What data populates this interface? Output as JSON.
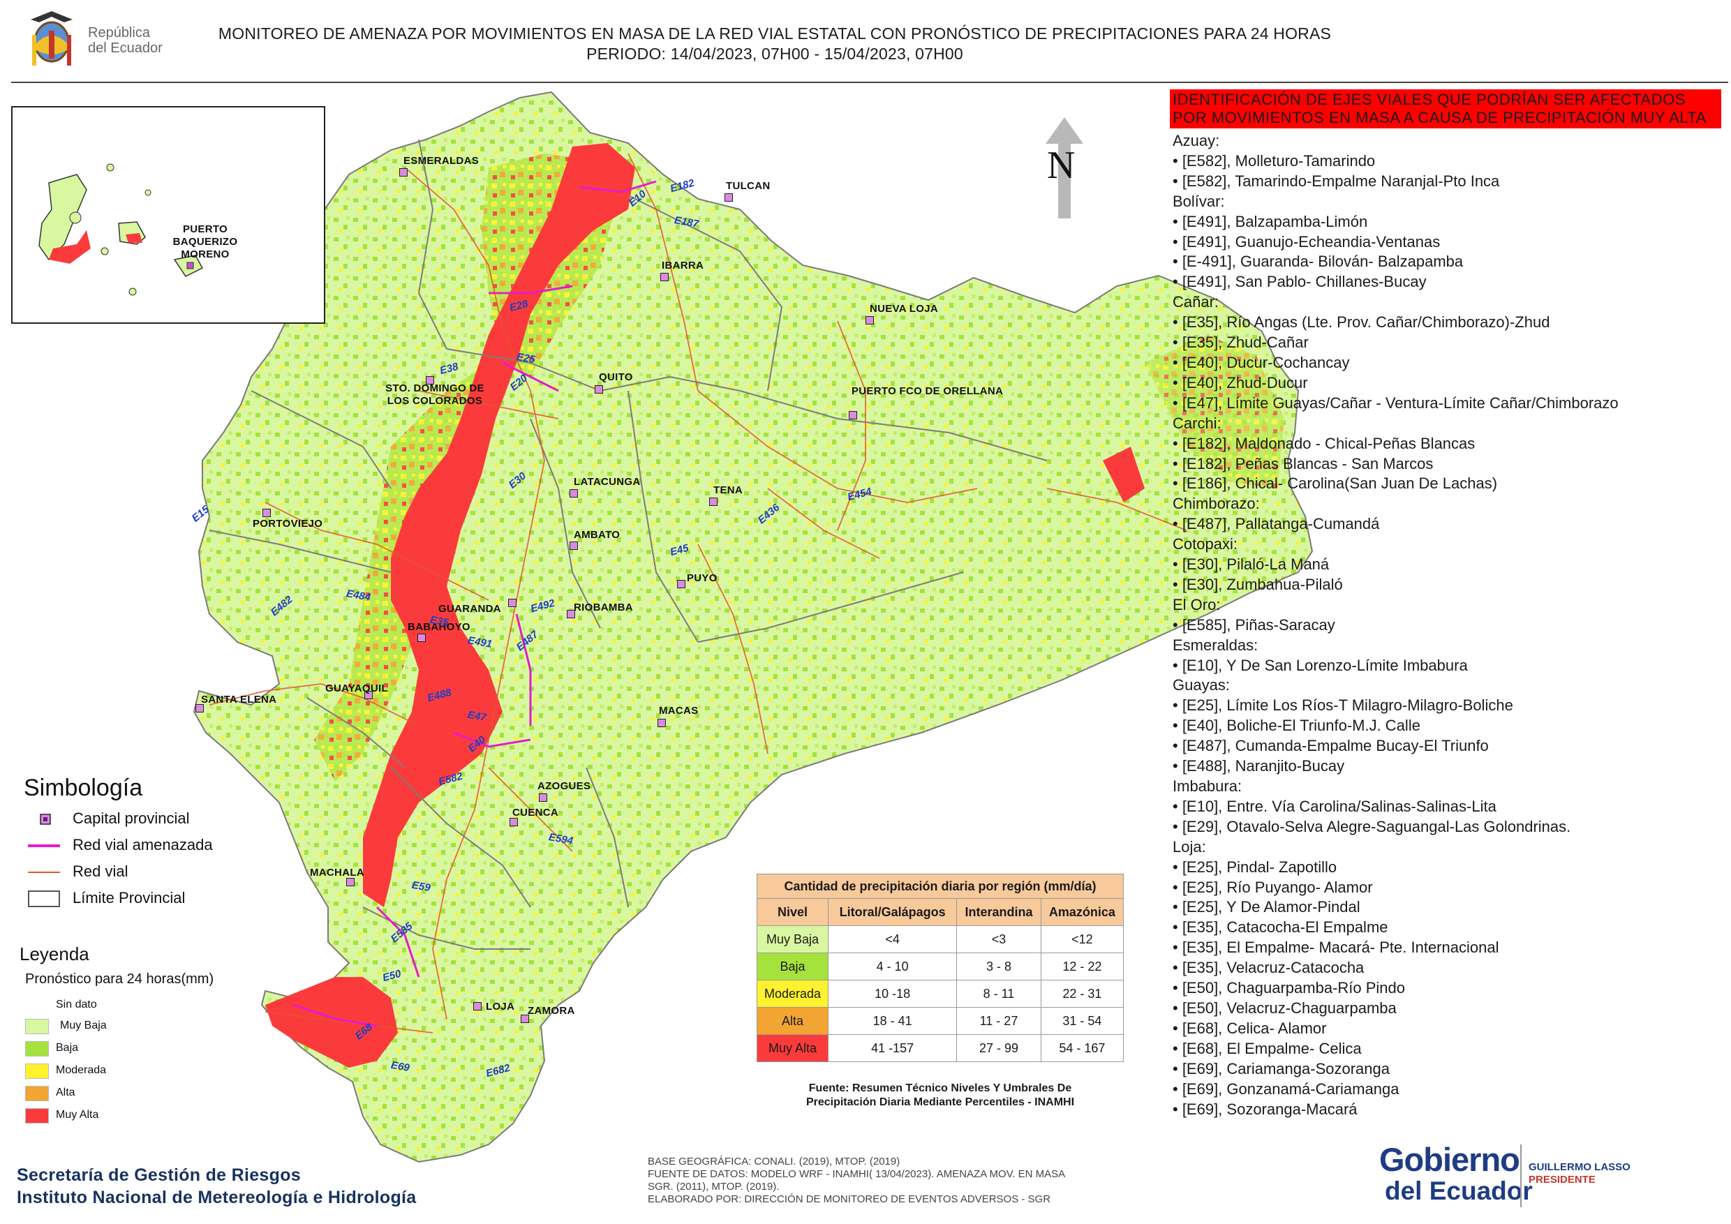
{
  "header": {
    "title_line1": "MONITOREO DE AMENAZA POR MOVIMIENTOS EN MASA DE LA RED VIAL  ESTATAL  CON PRONÓSTICO  DE  PRECIPITACIONES PARA 24 HORAS",
    "title_line2": "PERIODO: 14/04/2023, 07H00 - 15/04/2023, 07H00",
    "logo_text_1": "República",
    "logo_text_2": "del Ecuador"
  },
  "colors": {
    "muy_baja": "#d9f7a0",
    "baja": "#a6e23c",
    "moderada": "#fff22e",
    "alta": "#f2a532",
    "muy_alta": "#fb3b3b",
    "road_threatened": "#e51bcc",
    "road": "#e4552a",
    "province_border": "#707070"
  },
  "map": {
    "north_label": "N",
    "inset_label": "PUERTO BAQUERIZO MORENO",
    "cities": [
      {
        "name": "ESMERALDAS"
      },
      {
        "name": "TULCAN"
      },
      {
        "name": "IBARRA"
      },
      {
        "name": "NUEVA LOJA"
      },
      {
        "name": "QUITO"
      },
      {
        "name": "STO. DOMINGO DE LOS COLORADOS"
      },
      {
        "name": "PUERTO FCO DE ORELLANA"
      },
      {
        "name": "LATACUNGA"
      },
      {
        "name": "TENA"
      },
      {
        "name": "PORTOVIEJO"
      },
      {
        "name": "AMBATO"
      },
      {
        "name": "PUYO"
      },
      {
        "name": "GUARANDA"
      },
      {
        "name": "RIOBAMBA"
      },
      {
        "name": "BABAHOYO"
      },
      {
        "name": "SANTA ELENA"
      },
      {
        "name": "GUAYAQUIL"
      },
      {
        "name": "MACAS"
      },
      {
        "name": "AZOGUES"
      },
      {
        "name": "CUENCA"
      },
      {
        "name": "MACHALA"
      },
      {
        "name": "LOJA"
      },
      {
        "name": "ZAMORA"
      }
    ],
    "roads": [
      "E10",
      "E182",
      "E187",
      "E15",
      "E28",
      "E35",
      "E20",
      "E38",
      "E25",
      "E30",
      "E45",
      "E484",
      "E482",
      "E492",
      "E491",
      "E487",
      "E488",
      "E47",
      "E40",
      "E582",
      "E59",
      "E585",
      "E50",
      "E69",
      "E68",
      "E682",
      "E594",
      "E436",
      "E454"
    ]
  },
  "panel": {
    "heading": "IDENTIFICACIÓN DE EJES VIALES QUE PODRÍAN SER AFECTADOS POR MOVIMIENTOS EN MASA A CAUSA DE PRECIPITACIÓN MUY ALTA",
    "lines": [
      {
        "t": "prov",
        "text": "Azuay:"
      },
      {
        "t": "item",
        "text": "• [E582], Molleturo-Tamarindo"
      },
      {
        "t": "item",
        "text": "• [E582], Tamarindo-Empalme Naranjal-Pto Inca"
      },
      {
        "t": "prov",
        "text": "Bolívar:"
      },
      {
        "t": "item",
        "text": "• [E491], Balzapamba-Limón"
      },
      {
        "t": "item",
        "text": "• [E491], Guanujo-Echeandia-Ventanas"
      },
      {
        "t": "item",
        "text": "• [E-491], Guaranda- Bilován- Balzapamba"
      },
      {
        "t": "item",
        "text": "• [E491], San Pablo- Chillanes-Bucay"
      },
      {
        "t": "prov",
        "text": "Cañar:"
      },
      {
        "t": "item",
        "text": "• [E35], Río Angas (Lte. Prov. Cañar/Chimborazo)-Zhud"
      },
      {
        "t": "item",
        "text": "• [E35], Zhud-Cañar"
      },
      {
        "t": "item",
        "text": "• [E40], Ducur-Cochancay"
      },
      {
        "t": "item",
        "text": "• [E40], Zhud-Ducur"
      },
      {
        "t": "item",
        "text": "• [E47], Límite Guayas/Cañar - Ventura-Límite Cañar/Chimborazo"
      },
      {
        "t": "prov",
        "text": "Carchi:"
      },
      {
        "t": "item",
        "text": "• [E182], Maldonado - Chical-Peñas Blancas"
      },
      {
        "t": "item",
        "text": "• [E182], Peñas Blancas - San Marcos"
      },
      {
        "t": "item",
        "text": "• [E186], Chical- Carolina(San Juan De Lachas)"
      },
      {
        "t": "prov",
        "text": "Chimborazo:"
      },
      {
        "t": "item",
        "text": "• [E487], Pallatanga-Cumandá"
      },
      {
        "t": "prov",
        "text": "Cotopaxi:"
      },
      {
        "t": "item",
        "text": "• [E30], Pilaló-La Maná"
      },
      {
        "t": "item",
        "text": "• [E30], Zumbahua-Pilaló"
      },
      {
        "t": "prov",
        "text": "El Oro:"
      },
      {
        "t": "item",
        "text": "• [E585], Piñas-Saracay"
      },
      {
        "t": "prov",
        "text": "Esmeraldas:"
      },
      {
        "t": "item",
        "text": "• [E10], Y De San Lorenzo-Límite Imbabura"
      },
      {
        "t": "prov",
        "text": "Guayas:"
      },
      {
        "t": "item",
        "text": "• [E25], Límite Los Ríos-T Milagro-Milagro-Boliche"
      },
      {
        "t": "item",
        "text": "• [E40], Boliche-El Triunfo-M.J. Calle"
      },
      {
        "t": "item",
        "text": "• [E487], Cumanda-Empalme Bucay-El Triunfo"
      },
      {
        "t": "item",
        "text": "• [E488], Naranjito-Bucay"
      },
      {
        "t": "prov",
        "text": "Imbabura:"
      },
      {
        "t": "item",
        "text": "• [E10], Entre. Vía Carolina/Salinas-Salinas-Lita"
      },
      {
        "t": "item",
        "text": "• [E29], Otavalo-Selva Alegre-Saguangal-Las Golondrinas."
      },
      {
        "t": "prov",
        "text": "Loja:"
      },
      {
        "t": "item",
        "text": "• [E25], Pindal- Zapotillo"
      },
      {
        "t": "item",
        "text": "• [E25], Río Puyango- Alamor"
      },
      {
        "t": "item",
        "text": "• [E25], Y De Alamor-Pindal"
      },
      {
        "t": "item",
        "text": "• [E35], Catacocha-El Empalme"
      },
      {
        "t": "item",
        "text": "• [E35], El Empalme- Macará- Pte. Internacional"
      },
      {
        "t": "item",
        "text": "• [E35], Velacruz-Catacocha"
      },
      {
        "t": "item",
        "text": "• [E50], Chaguarpamba-Río Pindo"
      },
      {
        "t": "item",
        "text": "• [E50], Velacruz-Chaguarpamba"
      },
      {
        "t": "item",
        "text": "• [E68], Celica- Alamor"
      },
      {
        "t": "item",
        "text": "• [E68], El Empalme- Celica"
      },
      {
        "t": "item",
        "text": "• [E69], Cariamanga-Sozoranga"
      },
      {
        "t": "item",
        "text": "• [E69], Gonzanamá-Cariamanga"
      },
      {
        "t": "item",
        "text": "• [E69], Sozoranga-Macará"
      }
    ]
  },
  "simbologia": {
    "title": "Simbología",
    "items": [
      "Capital provincial",
      "Red vial amenazada",
      "Red vial",
      "Límite Provincial"
    ]
  },
  "leyenda": {
    "title": "Leyenda",
    "subtitle": "Pronóstico para 24 horas(mm)",
    "items": [
      "Sin dato",
      "Muy Baja",
      "Baja",
      "Moderada",
      "Alta",
      "Muy Alta"
    ]
  },
  "table": {
    "caption": "Cantidad de precipitación diaria por región (mm/día)",
    "headers": [
      "Nivel",
      "Litoral/Galápagos",
      "Interandina",
      "Amazónica"
    ],
    "rows": [
      [
        "Muy Baja",
        "<4",
        "<3",
        "<12"
      ],
      [
        "Baja",
        "4 - 10",
        "3 - 8",
        "12 - 22"
      ],
      [
        "Moderada",
        "10 -18",
        "8 - 11",
        "22 - 31"
      ],
      [
        "Alta",
        "18 - 41",
        "11 - 27",
        "31 - 54"
      ],
      [
        "Muy Alta",
        "41 -157",
        "27 - 99",
        "54 - 167"
      ]
    ],
    "source_1": "Fuente: Resumen Técnico Niveles Y Umbrales De",
    "source_2": "Precipitación Diaria Mediante Percentiles - INAMHI"
  },
  "footer": {
    "org_1": "Secretaría de Gestión de Riesgos",
    "org_2": "Instituto Nacional de Metereología e Hidrología",
    "credit_1": "BASE GEOGRÁFICA: CONALI. (2019), MTOP. (2019)",
    "credit_2": "FUENTE DE DATOS: MODELO WRF - INAMHI( 13/04/2023).  AMENAZA MOV. EN MASA",
    "credit_3": "SGR. (2011), MTOP. (2019).",
    "credit_4": "ELABORADO POR: DIRECCIÓN DE MONITOREO DE EVENTOS ADVERSOS - SGR",
    "gob_1": "Gobierno",
    "gob_2": "del Ecuador",
    "president_name": "GUILLERMO LASSO",
    "president_title": "PRESIDENTE"
  }
}
